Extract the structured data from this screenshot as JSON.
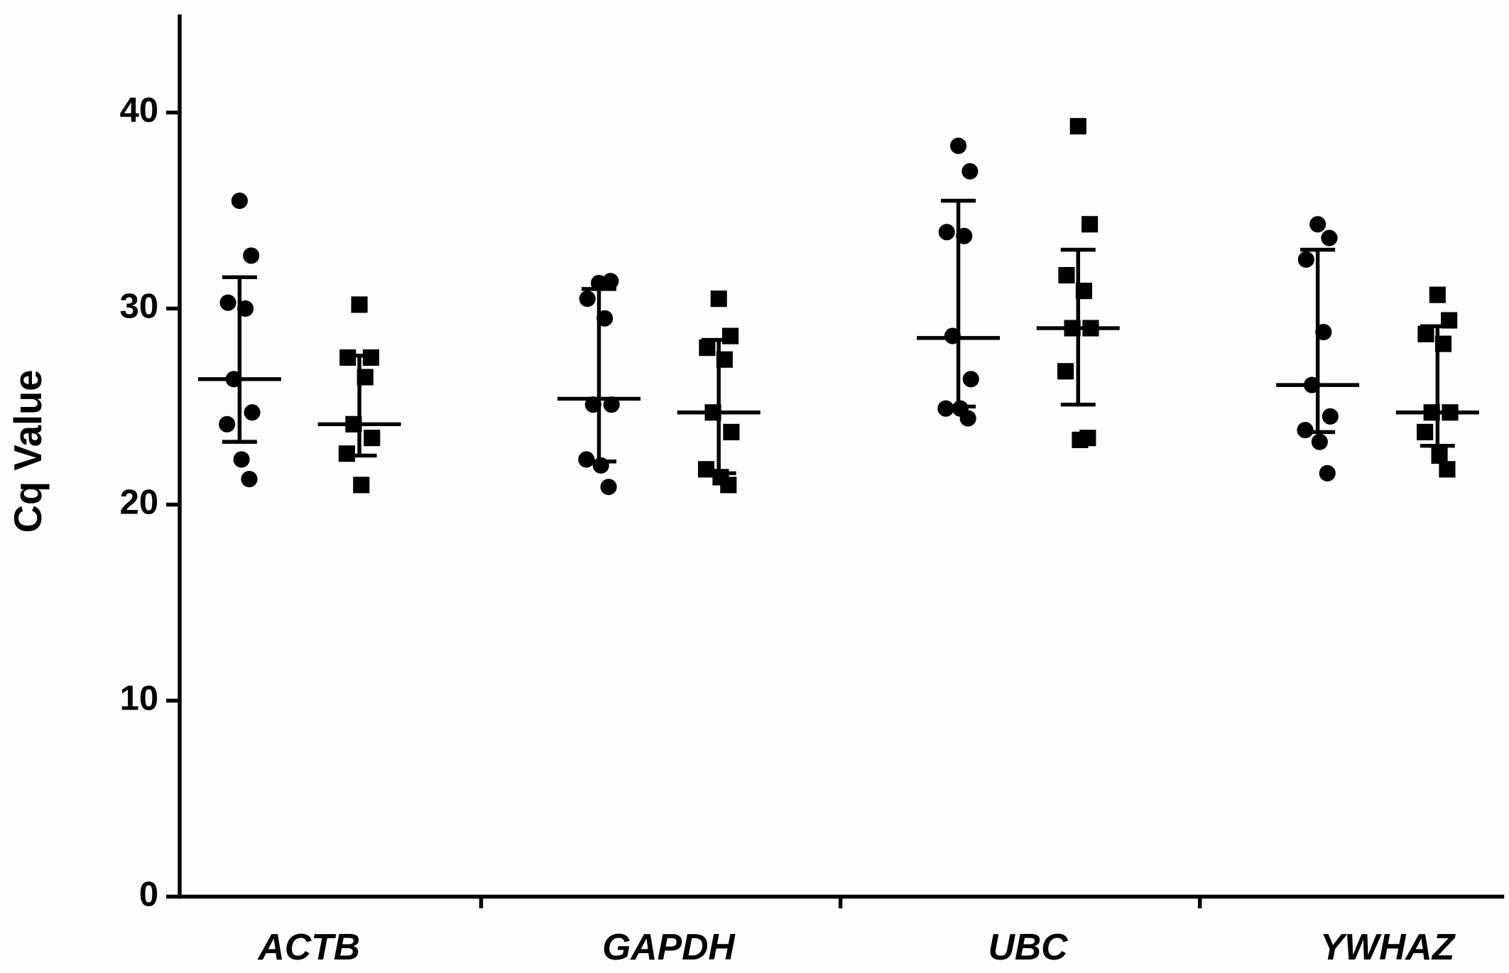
{
  "chart_data": {
    "type": "dot_plot",
    "y_label": "Cq Value",
    "categories": [
      "ACTB",
      "GAPDH",
      "UBC",
      "YWHAZ"
    ],
    "ylim": [
      0,
      45
    ],
    "yticks": [
      0,
      10,
      20,
      30,
      40
    ],
    "series": [
      {
        "marker": "circle",
        "color": "#000000",
        "values": [
          [
            35.5,
            32.7,
            30.3,
            30.0,
            26.4,
            24.7,
            24.1,
            22.3,
            21.3
          ],
          [
            31.3,
            31.4,
            30.5,
            29.5,
            25.1,
            25.1,
            22.3,
            22.0,
            20.9
          ],
          [
            38.3,
            37.0,
            33.9,
            33.7,
            28.6,
            26.4,
            24.9,
            24.9,
            24.4
          ],
          [
            34.3,
            33.6,
            32.5,
            28.8,
            26.1,
            24.5,
            23.8,
            23.2,
            21.6
          ]
        ],
        "mean": [
          26.4,
          25.4,
          28.5,
          26.1
        ],
        "upper": [
          31.6,
          31.0,
          35.5,
          33.0
        ],
        "lower": [
          23.2,
          22.2,
          25.0,
          23.7
        ]
      },
      {
        "marker": "square",
        "color": "#000000",
        "values": [
          [
            30.2,
            27.5,
            27.5,
            26.5,
            24.1,
            23.4,
            22.6,
            21.0
          ],
          [
            30.5,
            28.6,
            28.0,
            27.4,
            24.7,
            23.7,
            21.8,
            21.4,
            21.0
          ],
          [
            39.3,
            34.3,
            31.7,
            30.9,
            29.0,
            29.0,
            26.8,
            23.3,
            23.4
          ],
          [
            30.7,
            29.4,
            28.7,
            28.2,
            24.7,
            24.7,
            23.7,
            22.5,
            21.8
          ]
        ],
        "mean": [
          24.1,
          24.7,
          29.0,
          24.7
        ],
        "upper": [
          27.6,
          28.4,
          33.0,
          29.1
        ],
        "lower": [
          22.5,
          21.6,
          25.1,
          23.0
        ]
      }
    ]
  }
}
